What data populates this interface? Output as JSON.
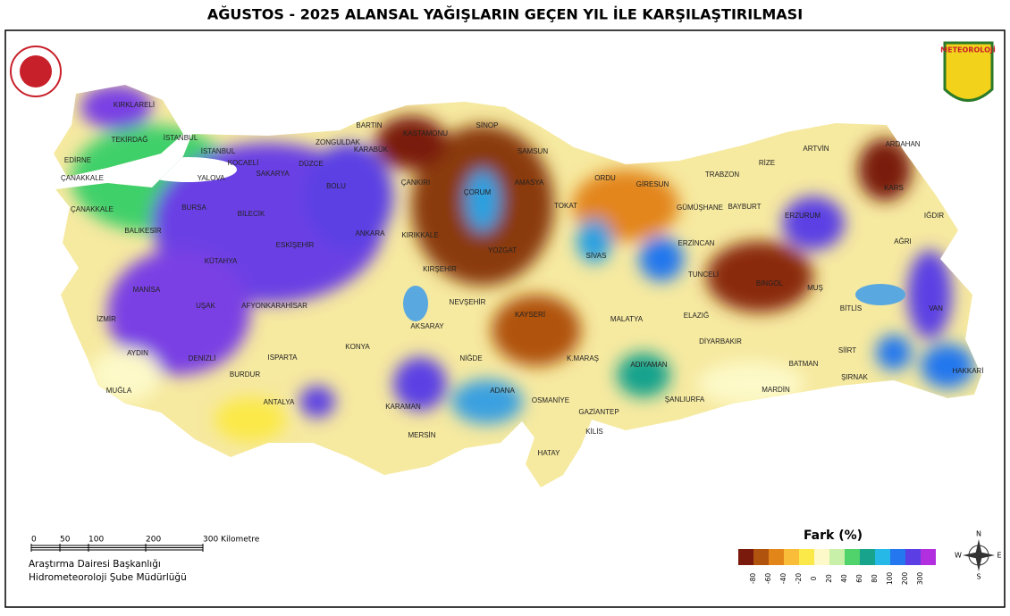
{
  "header": {
    "title": "AĞUSTOS - 2025 ALANSAL YAĞIŞLARIN GEÇEN YIL İLE KARŞILAŞTIRILMASI"
  },
  "logo": {
    "right": "METEOROLOJİ"
  },
  "provinces": [
    "KIRKLARELİ",
    "TEKİRDAĞ",
    "İSTANBUL",
    "EDİRNE",
    "İSTANBUL",
    "KOCAELİ",
    "SAKARYA",
    "DÜZCE",
    "ZONGULDAK",
    "BARTIN",
    "KARABÜK",
    "KASTAMONU",
    "SİNOP",
    "SAMSUN",
    "AMASYA",
    "ÇORUM",
    "ÇANKIRI",
    "ÇANAKKALE",
    "ÇANAKKALE",
    "YALOVA",
    "BURSA",
    "BİLECİK",
    "BOLU",
    "BALIKESİR",
    "ESKİŞEHİR",
    "ANKARA",
    "KIRIKKALE",
    "YOZGAT",
    "KIRŞEHİR",
    "KÜTAHYA",
    "MANİSA",
    "İZMİR",
    "UŞAK",
    "AFYONKARAHİSAR",
    "NEVŞEHİR",
    "AKSARAY",
    "KONYA",
    "AYDIN",
    "DENİZLİ",
    "ISPARTA",
    "BURDUR",
    "MUĞLA",
    "ANTALYA",
    "NİĞDE",
    "KARAMAN",
    "MERSİN",
    "ADANA",
    "OSMANİYE",
    "HATAY",
    "KİLİS",
    "GAZİANTEP",
    "KAYSERİ",
    "K.MARAŞ",
    "ADIYAMAN",
    "ŞANLIURFA",
    "MALATYA",
    "ELAZIĞ",
    "DİYARBAKIR",
    "TUNCELİ",
    "BİNGÖL",
    "MUŞ",
    "BİTLİS",
    "VAN",
    "BATMAN",
    "SİİRT",
    "MARDİN",
    "ŞIRNAK",
    "HAKKARİ",
    "SİVAS",
    "TOKAT",
    "ORDU",
    "GİRESUN",
    "TRABZON",
    "RİZE",
    "ARTVİN",
    "ARDAHAN",
    "KARS",
    "IĞDIR",
    "AĞRI",
    "ERZURUM",
    "BAYBURT",
    "GÜMÜŞHANE",
    "ERZİNCAN"
  ],
  "scale_bar": {
    "ticks": [
      "0",
      "50",
      "100",
      "200",
      "300 Kilometre"
    ]
  },
  "credits": [
    "Araştırma Dairesi Başkanlığı",
    "Hidrometeoroloji Şube Müdürlüğü"
  ],
  "legend": {
    "title": "Fark (%)",
    "labels": [
      "-80",
      "-60",
      "-40",
      "-20",
      "0",
      "20",
      "40",
      "60",
      "80",
      "100",
      "200",
      "300"
    ],
    "colors": [
      "#7a1a0c",
      "#b0530f",
      "#e3861a",
      "#f9bd3a",
      "#fbe94a",
      "#fdf9c8",
      "#c9f0a8",
      "#4fd36a",
      "#18a38d",
      "#26b8e6",
      "#2477ee",
      "#5b3fe4",
      "#b22fe0"
    ]
  },
  "compass": {
    "n": "N",
    "e": "E",
    "s": "S",
    "w": "W"
  }
}
